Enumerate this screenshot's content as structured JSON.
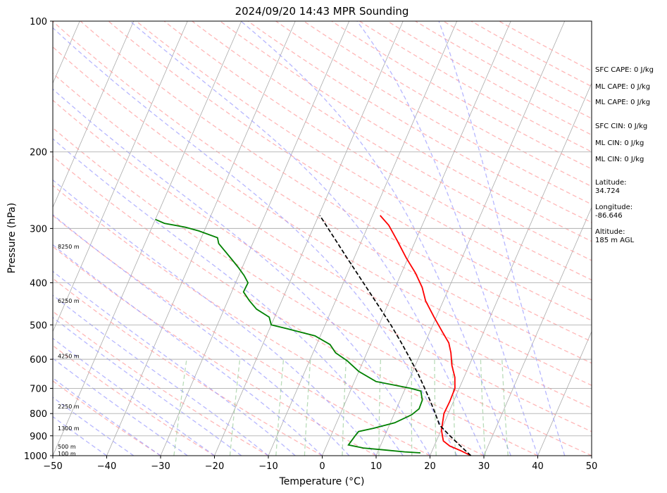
{
  "chart_data": {
    "type": "line",
    "title": "2024/09/20 14:43 MPR Sounding",
    "xlabel": "Temperature (°C)",
    "ylabel": "Pressure (hPa)",
    "xlim": [
      -50,
      50
    ],
    "ylim": [
      1000,
      100
    ],
    "y_scale": "log",
    "skew": "skew-T (isotherms tilted)",
    "grid": true,
    "x_ticks": [
      "−50",
      "−40",
      "−30",
      "−20",
      "−10",
      "0",
      "10",
      "20",
      "30",
      "40",
      "50"
    ],
    "y_ticks": [
      "100",
      "200",
      "300",
      "400",
      "500",
      "600",
      "700",
      "800",
      "900",
      "1000"
    ],
    "series": [
      {
        "key": "temperature",
        "color": "#ff0000",
        "points": [
          [
            1000,
            27.6
          ],
          [
            975,
            25.4
          ],
          [
            950,
            22.9
          ],
          [
            925,
            21.3
          ],
          [
            900,
            20.7
          ],
          [
            870,
            20.0
          ],
          [
            850,
            19.8
          ],
          [
            800,
            19.2
          ],
          [
            750,
            19.3
          ],
          [
            700,
            19.2
          ],
          [
            660,
            18.3
          ],
          [
            620,
            16.8
          ],
          [
            580,
            15.6
          ],
          [
            550,
            14.4
          ],
          [
            520,
            12.4
          ],
          [
            480,
            9.6
          ],
          [
            440,
            6.7
          ],
          [
            410,
            5.0
          ],
          [
            380,
            2.6
          ],
          [
            350,
            -0.4
          ],
          [
            320,
            -3.4
          ],
          [
            295,
            -6.2
          ],
          [
            280,
            -8.6
          ]
        ]
      },
      {
        "key": "dewpoint",
        "color": "#008000",
        "points": [
          [
            985,
            18.0
          ],
          [
            980,
            15.0
          ],
          [
            970,
            11.0
          ],
          [
            960,
            7.0
          ],
          [
            945,
            4.0
          ],
          [
            900,
            4.5
          ],
          [
            880,
            4.8
          ],
          [
            865,
            7.3
          ],
          [
            840,
            10.8
          ],
          [
            805,
            13.3
          ],
          [
            780,
            14.2
          ],
          [
            745,
            14.1
          ],
          [
            710,
            13.1
          ],
          [
            700,
            11.0
          ],
          [
            675,
            4.0
          ],
          [
            640,
            0.0
          ],
          [
            605,
            -3.0
          ],
          [
            580,
            -5.8
          ],
          [
            555,
            -7.5
          ],
          [
            530,
            -11.0
          ],
          [
            510,
            -16.8
          ],
          [
            500,
            -20.0
          ],
          [
            480,
            -21.0
          ],
          [
            460,
            -24.0
          ],
          [
            440,
            -26.0
          ],
          [
            420,
            -27.8
          ],
          [
            400,
            -27.7
          ],
          [
            385,
            -29.0
          ],
          [
            370,
            -30.6
          ],
          [
            355,
            -32.4
          ],
          [
            340,
            -34.3
          ],
          [
            325,
            -36.3
          ],
          [
            315,
            -37.0
          ],
          [
            304,
            -41.0
          ],
          [
            298,
            -43.8
          ],
          [
            292,
            -48.0
          ],
          [
            286,
            -50.0
          ]
        ]
      },
      {
        "key": "parcel",
        "color": "#000000",
        "dashed": true,
        "points": [
          [
            1000,
            27.6
          ],
          [
            950,
            24.9
          ],
          [
            900,
            22.1
          ],
          [
            850,
            19.3
          ],
          [
            800,
            17.6
          ],
          [
            750,
            15.7
          ],
          [
            700,
            13.6
          ],
          [
            650,
            11.3
          ],
          [
            600,
            8.6
          ],
          [
            550,
            5.6
          ],
          [
            500,
            2.2
          ],
          [
            450,
            -1.8
          ],
          [
            400,
            -6.3
          ],
          [
            350,
            -11.4
          ],
          [
            300,
            -17.2
          ],
          [
            280,
            -19.8
          ]
        ]
      }
    ],
    "height_labels": [
      {
        "text": "100 m",
        "p": 988
      },
      {
        "text": "500 m",
        "p": 953
      },
      {
        "text": "1300 m",
        "p": 865
      },
      {
        "text": "2250 m",
        "p": 770
      },
      {
        "text": "4250 m",
        "p": 590
      },
      {
        "text": "6250 m",
        "p": 440
      },
      {
        "text": "8250 m",
        "p": 330
      }
    ],
    "annotations": {
      "sfc_cape": "SFC CAPE: 0 J/kg",
      "ml_cape_1": "ML CAPE: 0 J/kg",
      "ml_cape_2": "ML CAPE: 0 J/kg",
      "sfc_cin": "SFC CIN: 0 J/kg",
      "ml_cin_1": "ML CIN: 0 J/kg",
      "ml_cin_2": "ML CIN: 0 J/kg",
      "latitude_label": "Latitude:",
      "latitude_value": "34.724",
      "longitude_label": "Longitude:",
      "longitude_value": "-86.646",
      "altitude_label": "Altitude:",
      "altitude_value": "185 m AGL"
    },
    "background_lines": {
      "isotherm_color": "#aaaaaa",
      "dry_adiabat_color": "#ff9999",
      "moist_adiabat_color": "#9999ff",
      "mixing_ratio_color": "#80c080"
    }
  }
}
